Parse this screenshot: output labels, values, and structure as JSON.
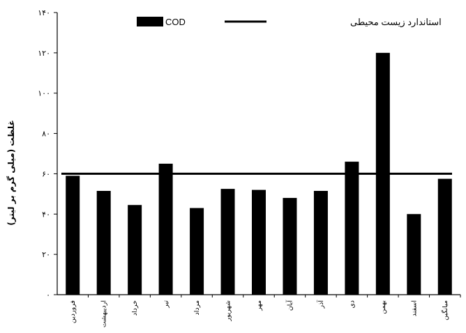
{
  "chart_data": {
    "type": "bar",
    "ylabel": "غلظت (میلی گرم بر لیتر)",
    "ylim": [
      0,
      140
    ],
    "yticks": [
      0,
      20,
      40,
      60,
      80,
      100,
      120,
      140
    ],
    "ytick_labels": [
      "۰",
      "۲۰",
      "۴۰",
      "۶۰",
      "۸۰",
      "۱۰۰",
      "۱۲۰",
      "۱۴۰"
    ],
    "categories": [
      "فروردین",
      "اردیبهشت",
      "خرداد",
      "تیر",
      "مرداد",
      "شهریور",
      "مهر",
      "آبان",
      "آذر",
      "دی",
      "بهمن",
      "اسفند",
      "میانگین"
    ],
    "series": [
      {
        "name": "COD",
        "values": [
          59,
          51.5,
          44.5,
          65,
          43,
          52.5,
          52,
          48,
          51.5,
          66,
          120,
          40,
          57.5
        ],
        "color": "#000000"
      }
    ],
    "reference_line": {
      "name": "استاندارد زیست محیطی",
      "value": 60,
      "color": "#000000"
    },
    "legend": {
      "placement": "top"
    },
    "grid": false
  }
}
